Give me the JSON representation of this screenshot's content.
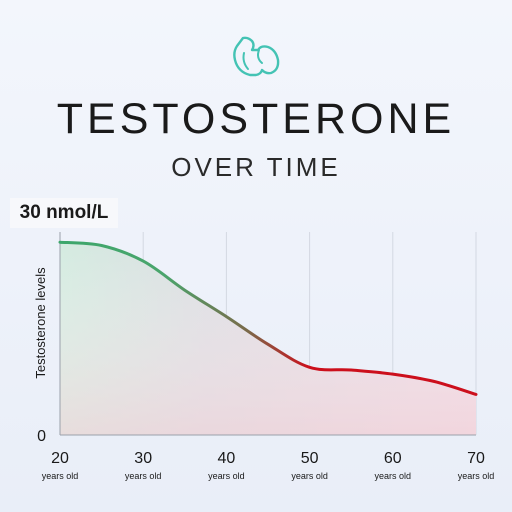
{
  "header": {
    "title": "TESTOSTERONE",
    "subtitle": "OVER TIME",
    "logo_icon": "flexed-arm-icon"
  },
  "colors": {
    "high": "#3ca66b",
    "low": "#cc0f1c",
    "logo": "#44c3b4"
  },
  "chart_data": {
    "type": "area",
    "title": "TESTOSTERONE OVER TIME",
    "ylabel": "Testosterone levels",
    "xlabel": "",
    "y_max_label": "30 nmol/L",
    "y_min_label": "0",
    "ylim": [
      0,
      30
    ],
    "xlim": [
      20,
      70
    ],
    "x": [
      20,
      25,
      30,
      35,
      40,
      45,
      50,
      55,
      60,
      65,
      70
    ],
    "values": [
      28.5,
      28.0,
      25.7,
      21.4,
      17.5,
      13.4,
      10.0,
      9.6,
      9.0,
      7.9,
      6.0
    ],
    "x_ticks": [
      {
        "value": 20,
        "label": "20",
        "sublabel": "years old"
      },
      {
        "value": 30,
        "label": "30",
        "sublabel": "years old"
      },
      {
        "value": 40,
        "label": "40",
        "sublabel": "years old"
      },
      {
        "value": 50,
        "label": "50",
        "sublabel": "years old"
      },
      {
        "value": 60,
        "label": "60",
        "sublabel": "years old"
      },
      {
        "value": 70,
        "label": "70",
        "sublabel": "years old"
      }
    ],
    "grid": true
  }
}
